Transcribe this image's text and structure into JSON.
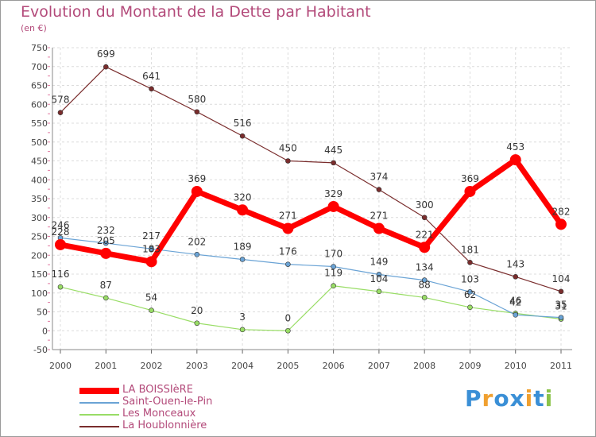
{
  "chart_data": {
    "type": "line",
    "title": "Evolution du Montant de la Dette par Habitant",
    "subtitle": "(en €)",
    "x": [
      "2000",
      "2001",
      "2002",
      "2003",
      "2004",
      "2005",
      "2006",
      "2007",
      "2008",
      "2009",
      "2010",
      "2011"
    ],
    "ylim": [
      -50,
      750
    ],
    "yticks": [
      -50,
      0,
      50,
      100,
      150,
      200,
      250,
      300,
      350,
      400,
      450,
      500,
      550,
      600,
      650,
      700,
      750
    ],
    "grid": true,
    "legend_position": "bottom-left",
    "series": [
      {
        "name": "LA BOISSIèRE",
        "color": "#ff0000",
        "values": [
          228,
          205,
          183,
          369,
          320,
          271,
          329,
          271,
          221,
          369,
          453,
          282
        ],
        "labels": [
          "228",
          "205",
          "183",
          "369",
          "320",
          "271",
          "329",
          "271",
          "221",
          "369",
          "453",
          "282"
        ]
      },
      {
        "name": "Saint-Ouen-le-Pin",
        "color": "#6aa3d5",
        "values": [
          246,
          232,
          217,
          202,
          189,
          176,
          170,
          149,
          134,
          103,
          42,
          35
        ],
        "labels": [
          "246",
          "232",
          "217",
          "202",
          "189",
          "176",
          "170",
          "149",
          "134",
          "103",
          "42",
          "35"
        ]
      },
      {
        "name": "Les Monceaux",
        "color": "#99dd66",
        "values": [
          116,
          87,
          54,
          20,
          3,
          0,
          119,
          104,
          88,
          62,
          46,
          31
        ],
        "labels": [
          "116",
          "87",
          "54",
          "20",
          "3",
          "0",
          "119",
          "104",
          "88",
          "62",
          "46",
          "31"
        ]
      },
      {
        "name": "La Houblonnière",
        "color": "#7a2d2d",
        "values": [
          578,
          699,
          641,
          580,
          516,
          450,
          445,
          374,
          300,
          181,
          143,
          104
        ],
        "labels": [
          "578",
          "699",
          "641",
          "580",
          "516",
          "450",
          "445",
          "374",
          "300",
          "181",
          "143",
          "104"
        ]
      }
    ]
  },
  "brand": {
    "letters": [
      "P",
      "r",
      "o",
      "x",
      "i",
      "t",
      "i"
    ],
    "colors": [
      "#3a8fd6",
      "#f0a030",
      "#3a8fd6",
      "#3a8fd6",
      "#f0a030",
      "#3a8fd6",
      "#8bc34a"
    ]
  }
}
